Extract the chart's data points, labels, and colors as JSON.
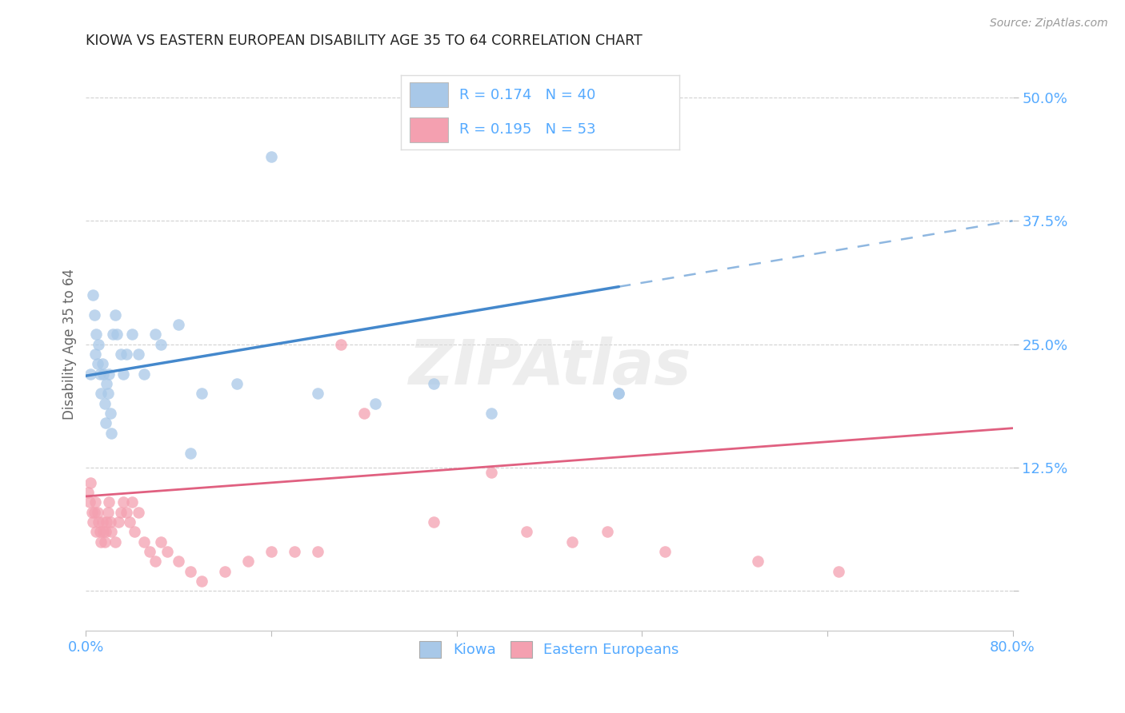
{
  "title": "KIOWA VS EASTERN EUROPEAN DISABILITY AGE 35 TO 64 CORRELATION CHART",
  "source": "Source: ZipAtlas.com",
  "ylabel": "Disability Age 35 to 64",
  "xlim": [
    0.0,
    0.8
  ],
  "ylim": [
    -0.04,
    0.54
  ],
  "ytick_positions": [
    0.0,
    0.125,
    0.25,
    0.375,
    0.5
  ],
  "ytick_labels": [
    "",
    "12.5%",
    "25.0%",
    "37.5%",
    "50.0%"
  ],
  "kiowa_color": "#a8c8e8",
  "ee_color": "#f4a0b0",
  "kiowa_line_color": "#4488cc",
  "ee_line_color": "#e06080",
  "kiowa_line_solid_end": 0.46,
  "background_color": "#ffffff",
  "grid_color": "#cccccc",
  "title_color": "#222222",
  "axis_label_color": "#666666",
  "tick_label_color": "#55aaff",
  "kiowa_x": [
    0.004,
    0.006,
    0.007,
    0.008,
    0.009,
    0.01,
    0.011,
    0.012,
    0.013,
    0.014,
    0.015,
    0.016,
    0.017,
    0.018,
    0.019,
    0.02,
    0.021,
    0.022,
    0.023,
    0.025,
    0.027,
    0.03,
    0.032,
    0.035,
    0.04,
    0.045,
    0.05,
    0.06,
    0.065,
    0.08,
    0.09,
    0.1,
    0.13,
    0.16,
    0.2,
    0.25,
    0.3,
    0.35,
    0.46,
    0.46
  ],
  "kiowa_y": [
    0.22,
    0.3,
    0.28,
    0.24,
    0.26,
    0.23,
    0.25,
    0.22,
    0.2,
    0.23,
    0.22,
    0.19,
    0.17,
    0.21,
    0.2,
    0.22,
    0.18,
    0.16,
    0.26,
    0.28,
    0.26,
    0.24,
    0.22,
    0.24,
    0.26,
    0.24,
    0.22,
    0.26,
    0.25,
    0.27,
    0.14,
    0.2,
    0.21,
    0.44,
    0.2,
    0.19,
    0.21,
    0.18,
    0.2,
    0.2
  ],
  "ee_x": [
    0.002,
    0.003,
    0.004,
    0.005,
    0.006,
    0.007,
    0.008,
    0.009,
    0.01,
    0.011,
    0.012,
    0.013,
    0.014,
    0.015,
    0.016,
    0.017,
    0.018,
    0.019,
    0.02,
    0.021,
    0.022,
    0.025,
    0.028,
    0.03,
    0.032,
    0.035,
    0.038,
    0.04,
    0.042,
    0.045,
    0.05,
    0.055,
    0.06,
    0.065,
    0.07,
    0.08,
    0.09,
    0.1,
    0.12,
    0.14,
    0.16,
    0.18,
    0.2,
    0.22,
    0.24,
    0.3,
    0.35,
    0.38,
    0.42,
    0.45,
    0.5,
    0.58,
    0.65
  ],
  "ee_y": [
    0.1,
    0.09,
    0.11,
    0.08,
    0.07,
    0.08,
    0.09,
    0.06,
    0.08,
    0.07,
    0.06,
    0.05,
    0.07,
    0.06,
    0.05,
    0.06,
    0.07,
    0.08,
    0.09,
    0.07,
    0.06,
    0.05,
    0.07,
    0.08,
    0.09,
    0.08,
    0.07,
    0.09,
    0.06,
    0.08,
    0.05,
    0.04,
    0.03,
    0.05,
    0.04,
    0.03,
    0.02,
    0.01,
    0.02,
    0.03,
    0.04,
    0.04,
    0.04,
    0.25,
    0.18,
    0.07,
    0.12,
    0.06,
    0.05,
    0.06,
    0.04,
    0.03,
    0.02
  ],
  "kiowa_line_x0": 0.0,
  "kiowa_line_y0": 0.218,
  "kiowa_line_x1": 0.8,
  "kiowa_line_y1": 0.375,
  "ee_line_x0": 0.0,
  "ee_line_y0": 0.096,
  "ee_line_x1": 0.8,
  "ee_line_y1": 0.165
}
